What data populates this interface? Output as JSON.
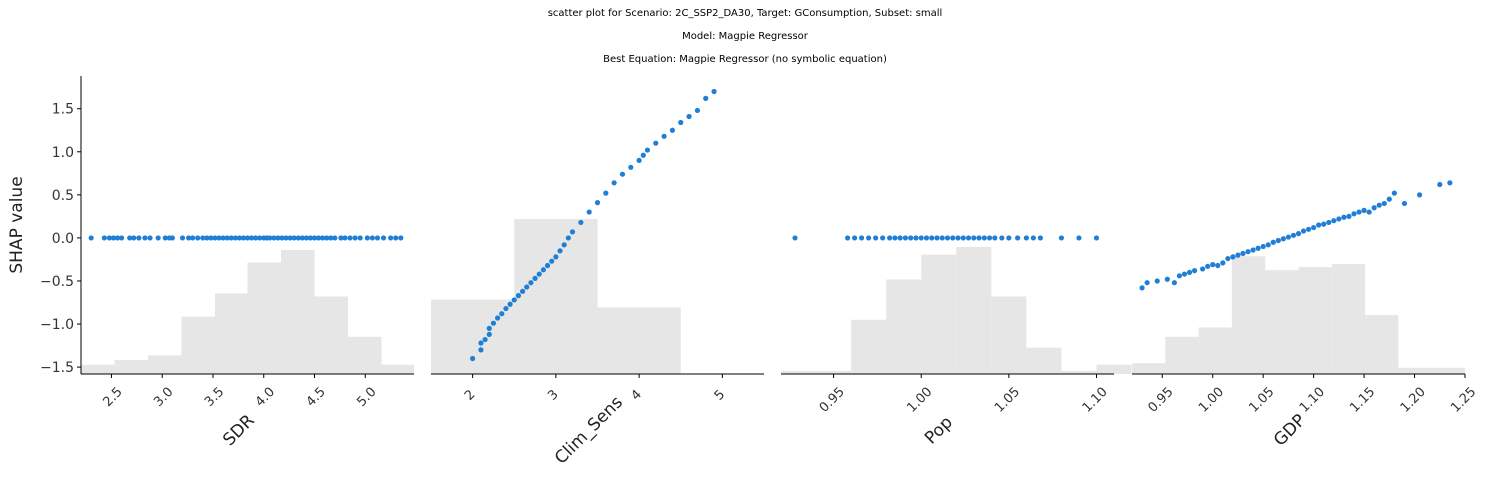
{
  "titles": {
    "line1": "scatter plot for Scenario: 2C_SSP2_DA30, Target: GConsumption, Subset: small",
    "line2": "Model: Magpie Regressor",
    "line3": "Best Equation: Magpie Regressor (no symbolic equation)"
  },
  "colors": {
    "points": "#1f7fd6",
    "histogram": "#e6e6e6",
    "axis": "#000000"
  },
  "chart_data": [
    {
      "type": "scatter",
      "xlabel": "SDR",
      "ylabel": "SHAP value",
      "xlim": [
        2.2,
        5.48
      ],
      "ylim": [
        -1.58,
        1.88
      ],
      "xticks": [
        2.5,
        3.0,
        3.5,
        4.0,
        4.5,
        5.0
      ],
      "xtick_labels": [
        "2.5",
        "3.0",
        "3.5",
        "4.0",
        "4.5",
        "5.0"
      ],
      "yticks": [
        -1.5,
        -1.0,
        -0.5,
        0.0,
        0.5,
        1.0,
        1.5
      ],
      "ytick_labels": [
        "−1.5",
        "−1.0",
        "−0.5",
        "0.0",
        "0.5",
        "1.0",
        "1.5"
      ],
      "rotate_xticks": true,
      "points": {
        "x": [
          2.3,
          2.43,
          2.48,
          2.52,
          2.56,
          2.6,
          2.68,
          2.72,
          2.77,
          2.83,
          2.88,
          2.96,
          3.03,
          3.07,
          3.1,
          3.2,
          3.26,
          3.3,
          3.35,
          3.4,
          3.44,
          3.48,
          3.52,
          3.56,
          3.6,
          3.64,
          3.68,
          3.72,
          3.76,
          3.8,
          3.84,
          3.88,
          3.92,
          3.96,
          4.0,
          4.03,
          4.06,
          4.1,
          4.14,
          4.18,
          4.22,
          4.26,
          4.3,
          4.34,
          4.38,
          4.42,
          4.46,
          4.5,
          4.54,
          4.58,
          4.62,
          4.66,
          4.7,
          4.76,
          4.8,
          4.85,
          4.9,
          4.95,
          5.02,
          5.07,
          5.12,
          5.18,
          5.25,
          5.3,
          5.35
        ],
        "y": [
          0,
          0,
          0,
          0,
          0,
          0,
          0,
          0,
          0,
          0,
          0,
          0,
          0,
          0,
          0,
          0,
          0,
          0,
          0,
          0,
          0,
          0,
          0,
          0,
          0,
          0,
          0,
          0,
          0,
          0,
          0,
          0,
          0,
          0,
          0,
          0,
          0,
          0,
          0,
          0,
          0,
          0,
          0,
          0,
          0,
          0,
          0,
          0,
          0,
          0,
          0,
          0,
          0,
          0,
          0,
          0,
          0,
          0,
          0,
          0,
          0,
          0,
          0,
          0,
          0
        ]
      },
      "histogram": {
        "bin_edges": [
          2.2,
          2.53,
          2.86,
          3.19,
          3.52,
          3.84,
          4.17,
          4.5,
          4.83,
          5.16,
          5.48
        ],
        "fractions": [
          0.06,
          0.09,
          0.12,
          0.37,
          0.52,
          0.72,
          0.8,
          0.5,
          0.24,
          0.06
        ]
      }
    },
    {
      "type": "scatter",
      "xlabel": "Clim_Sens",
      "xlim": [
        1.5,
        5.5
      ],
      "ylim": [
        -1.58,
        1.88
      ],
      "xticks": [
        2,
        3,
        4,
        5
      ],
      "xtick_labels": [
        "2",
        "3",
        "4",
        "5"
      ],
      "rotate_xticks": false,
      "points": {
        "x": [
          2.0,
          2.1,
          2.1,
          2.15,
          2.2,
          2.2,
          2.25,
          2.3,
          2.35,
          2.4,
          2.45,
          2.5,
          2.55,
          2.6,
          2.65,
          2.7,
          2.75,
          2.8,
          2.85,
          2.9,
          2.95,
          3.0,
          3.05,
          3.1,
          3.15,
          3.2,
          3.3,
          3.4,
          3.5,
          3.6,
          3.7,
          3.8,
          3.9,
          4.0,
          4.05,
          4.1,
          4.2,
          4.3,
          4.4,
          4.5,
          4.6,
          4.7,
          4.8,
          4.9
        ],
        "y": [
          -1.4,
          -1.3,
          -1.22,
          -1.18,
          -1.12,
          -1.05,
          -0.99,
          -0.93,
          -0.88,
          -0.82,
          -0.77,
          -0.72,
          -0.67,
          -0.62,
          -0.57,
          -0.52,
          -0.47,
          -0.42,
          -0.37,
          -0.32,
          -0.27,
          -0.22,
          -0.15,
          -0.08,
          0.0,
          0.07,
          0.18,
          0.3,
          0.41,
          0.52,
          0.64,
          0.74,
          0.82,
          0.9,
          0.96,
          1.02,
          1.1,
          1.18,
          1.25,
          1.34,
          1.41,
          1.48,
          1.62,
          1.7
        ]
      },
      "histogram": {
        "bin_edges": [
          1.5,
          2.5,
          3.5,
          4.5,
          5.5
        ],
        "fractions": [
          0.48,
          1.0,
          0.43,
          0.0
        ]
      }
    },
    {
      "type": "scatter",
      "xlabel": "Pop",
      "xlim": [
        0.92,
        1.11
      ],
      "ylim": [
        -1.58,
        1.88
      ],
      "xticks": [
        0.95,
        1.0,
        1.05,
        1.1
      ],
      "xtick_labels": [
        "0.95",
        "1.00",
        "1.05",
        "1.10"
      ],
      "rotate_xticks": true,
      "points": {
        "x": [
          0.928,
          0.958,
          0.962,
          0.966,
          0.97,
          0.974,
          0.978,
          0.982,
          0.985,
          0.988,
          0.991,
          0.994,
          0.997,
          1.0,
          1.003,
          1.006,
          1.009,
          1.012,
          1.015,
          1.018,
          1.021,
          1.024,
          1.027,
          1.03,
          1.033,
          1.036,
          1.039,
          1.042,
          1.046,
          1.05,
          1.055,
          1.06,
          1.064,
          1.068,
          1.08,
          1.09,
          1.1
        ],
        "y": [
          0,
          0,
          0,
          0,
          0,
          0,
          0,
          0,
          0,
          0,
          0,
          0,
          0,
          0,
          0,
          0,
          0,
          0,
          0,
          0,
          0,
          0,
          0,
          0,
          0,
          0,
          0,
          0,
          0,
          0,
          0,
          0,
          0,
          0,
          0,
          0,
          0
        ]
      },
      "histogram": {
        "bin_edges": [
          0.92,
          0.94,
          0.96,
          0.98,
          1.0,
          1.02,
          1.04,
          1.06,
          1.08,
          1.1,
          1.12
        ],
        "fractions": [
          0.02,
          0.02,
          0.35,
          0.61,
          0.77,
          0.82,
          0.5,
          0.17,
          0.02,
          0.06
        ]
      }
    },
    {
      "type": "scatter",
      "xlabel": "GDP",
      "xlim": [
        0.92,
        1.25
      ],
      "ylim": [
        -1.58,
        1.88
      ],
      "xticks": [
        0.95,
        1.0,
        1.05,
        1.1,
        1.15,
        1.2,
        1.25
      ],
      "xtick_labels": [
        "0.95",
        "1.00",
        "1.05",
        "1.10",
        "1.15",
        "1.20",
        "1.25"
      ],
      "rotate_xticks": true,
      "points": {
        "x": [
          0.93,
          0.935,
          0.945,
          0.955,
          0.962,
          0.967,
          0.972,
          0.977,
          0.982,
          0.99,
          0.995,
          1.0,
          1.005,
          1.01,
          1.015,
          1.02,
          1.025,
          1.03,
          1.035,
          1.04,
          1.045,
          1.05,
          1.055,
          1.06,
          1.065,
          1.07,
          1.075,
          1.08,
          1.085,
          1.09,
          1.095,
          1.1,
          1.105,
          1.11,
          1.115,
          1.12,
          1.125,
          1.13,
          1.135,
          1.14,
          1.145,
          1.15,
          1.155,
          1.16,
          1.165,
          1.17,
          1.175,
          1.18,
          1.19,
          1.205,
          1.225,
          1.235
        ],
        "y": [
          -0.58,
          -0.52,
          -0.5,
          -0.48,
          -0.52,
          -0.44,
          -0.42,
          -0.4,
          -0.38,
          -0.36,
          -0.33,
          -0.31,
          -0.32,
          -0.29,
          -0.24,
          -0.22,
          -0.2,
          -0.18,
          -0.16,
          -0.14,
          -0.12,
          -0.1,
          -0.08,
          -0.05,
          -0.03,
          -0.01,
          0.01,
          0.03,
          0.05,
          0.08,
          0.1,
          0.12,
          0.15,
          0.16,
          0.18,
          0.2,
          0.22,
          0.24,
          0.25,
          0.28,
          0.3,
          0.32,
          0.3,
          0.35,
          0.38,
          0.4,
          0.45,
          0.52,
          0.4,
          0.5,
          0.62,
          0.64
        ]
      },
      "histogram": {
        "bin_edges": [
          0.92,
          0.953,
          0.986,
          1.019,
          1.052,
          1.085,
          1.118,
          1.151,
          1.184,
          1.217,
          1.25
        ],
        "fractions": [
          0.07,
          0.24,
          0.3,
          0.76,
          0.67,
          0.69,
          0.71,
          0.38,
          0.04,
          0.04
        ]
      }
    }
  ]
}
